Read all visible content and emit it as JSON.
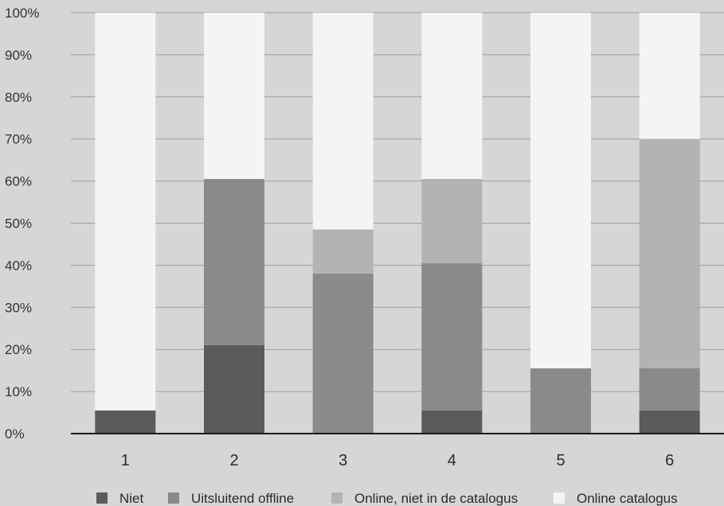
{
  "chart_data": {
    "type": "bar",
    "stacked": true,
    "categories": [
      "1",
      "2",
      "3",
      "4",
      "5",
      "6"
    ],
    "series": [
      {
        "name": "Niet",
        "color": "#5b5b5d",
        "values": [
          5.5,
          21,
          0,
          5.5,
          0,
          5.5
        ]
      },
      {
        "name": "Uitsluitend offline",
        "color": "#8a8a8c",
        "values": [
          0,
          39.5,
          38,
          35,
          15.5,
          10
        ]
      },
      {
        "name": "Online, niet in de catalogus",
        "color": "#b3b3b5",
        "values": [
          0,
          0,
          10.5,
          20,
          0,
          54.5
        ]
      },
      {
        "name": "Online catalogus",
        "color": "#f4f4f4",
        "values": [
          94.5,
          39.5,
          51.5,
          39.5,
          84.5,
          30
        ]
      }
    ],
    "yticks": [
      "0%",
      "10%",
      "20%",
      "30%",
      "40%",
      "50%",
      "60%",
      "70%",
      "80%",
      "90%",
      "100%"
    ],
    "ylim": [
      0,
      100
    ],
    "grid": true,
    "legend_position": "bottom",
    "title": "",
    "xlabel": "",
    "ylabel": ""
  }
}
